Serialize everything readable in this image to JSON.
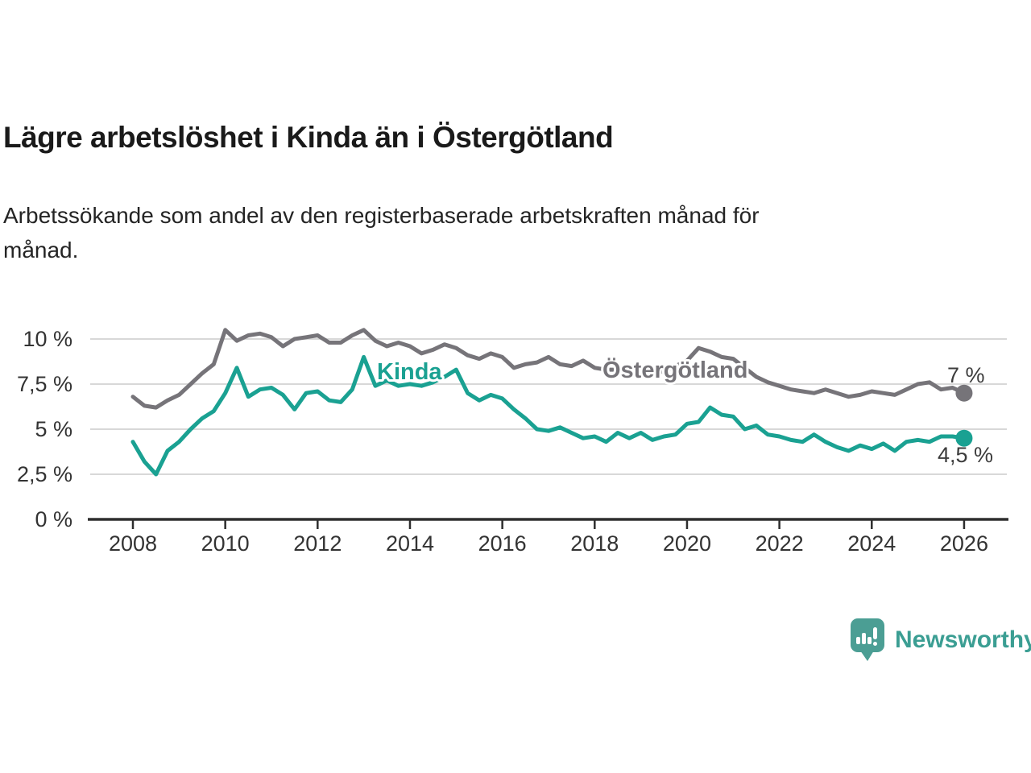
{
  "header": {
    "title": "Lägre arbetslöshet i Kinda än i Östergötland",
    "subtitle": "Arbetssökande som andel av den registerbaserade arbetskraften månad för månad."
  },
  "chart_data": {
    "type": "line",
    "title": "Lägre arbetslöshet i Kinda än i Östergötland",
    "xlabel": "",
    "ylabel": "",
    "grid": true,
    "legend": "inline-series-labels",
    "xlim": [
      2008,
      2026
    ],
    "ylim": [
      0,
      11.2
    ],
    "x_ticks": [
      2008,
      2010,
      2012,
      2014,
      2016,
      2018,
      2020,
      2022,
      2024,
      2026
    ],
    "x_tick_labels": [
      "2008",
      "2010",
      "2012",
      "2014",
      "2016",
      "2018",
      "2020",
      "2022",
      "2024",
      "2026"
    ],
    "y_ticks": [
      0,
      2.5,
      5,
      7.5,
      10
    ],
    "y_tick_labels": [
      "0 %",
      "2,5 %",
      "5 %",
      "7,5 %",
      "10 %"
    ],
    "x": [
      2008,
      2008.25,
      2008.5,
      2008.75,
      2009,
      2009.25,
      2009.5,
      2009.75,
      2010,
      2010.25,
      2010.5,
      2010.75,
      2011,
      2011.25,
      2011.5,
      2011.75,
      2012,
      2012.25,
      2012.5,
      2012.75,
      2013,
      2013.25,
      2013.5,
      2013.75,
      2014,
      2014.25,
      2014.5,
      2014.75,
      2015,
      2015.25,
      2015.5,
      2015.75,
      2016,
      2016.25,
      2016.5,
      2016.75,
      2017,
      2017.25,
      2017.5,
      2017.75,
      2018,
      2018.25,
      2018.5,
      2018.75,
      2019,
      2019.25,
      2019.5,
      2019.75,
      2020,
      2020.25,
      2020.5,
      2020.75,
      2021,
      2021.25,
      2021.5,
      2021.75,
      2022,
      2022.25,
      2022.5,
      2022.75,
      2023,
      2023.25,
      2023.5,
      2023.75,
      2024,
      2024.25,
      2024.5,
      2024.75,
      2025,
      2025.25,
      2025.5,
      2025.75,
      2026
    ],
    "series": [
      {
        "name": "Östergötland",
        "color": "#767479",
        "end_label": "7 %",
        "end_value": 7.0,
        "values": [
          6.8,
          6.3,
          6.2,
          6.6,
          6.9,
          7.5,
          8.1,
          8.6,
          10.5,
          9.9,
          10.2,
          10.3,
          10.1,
          9.6,
          10.0,
          10.1,
          10.2,
          9.8,
          9.8,
          10.2,
          10.5,
          9.9,
          9.6,
          9.8,
          9.6,
          9.2,
          9.4,
          9.7,
          9.5,
          9.1,
          8.9,
          9.2,
          9.0,
          8.4,
          8.6,
          8.7,
          9.0,
          8.6,
          8.5,
          8.8,
          8.4,
          8.3,
          8.3,
          8.4,
          8.2,
          8.1,
          8.2,
          8.5,
          8.8,
          9.5,
          9.3,
          9.0,
          8.9,
          8.4,
          7.9,
          7.6,
          7.4,
          7.2,
          7.1,
          7.0,
          7.2,
          7.0,
          6.8,
          6.9,
          7.1,
          7.0,
          6.9,
          7.2,
          7.5,
          7.6,
          7.2,
          7.3,
          7.0
        ]
      },
      {
        "name": "Kinda",
        "color": "#1aa192",
        "end_label": "4,5 %",
        "end_value": 4.5,
        "values": [
          4.3,
          3.2,
          2.5,
          3.8,
          4.3,
          5.0,
          5.6,
          6.0,
          7.0,
          8.4,
          6.8,
          7.2,
          7.3,
          6.9,
          6.1,
          7.0,
          7.1,
          6.6,
          6.5,
          7.2,
          9.0,
          7.4,
          7.7,
          7.4,
          7.5,
          7.4,
          7.6,
          7.9,
          8.3,
          7.0,
          6.6,
          6.9,
          6.7,
          6.1,
          5.6,
          5.0,
          4.9,
          5.1,
          4.8,
          4.5,
          4.6,
          4.3,
          4.8,
          4.5,
          4.8,
          4.4,
          4.6,
          4.7,
          5.3,
          5.4,
          6.2,
          5.8,
          5.7,
          5.0,
          5.2,
          4.7,
          4.6,
          4.4,
          4.3,
          4.7,
          4.3,
          4.0,
          3.8,
          4.1,
          3.9,
          4.2,
          3.8,
          4.3,
          4.4,
          4.3,
          4.6,
          4.6,
          4.5
        ]
      }
    ],
    "colors": {
      "grid": "#d8d8d8",
      "axis": "#2e2e2e",
      "tick_text": "#333333",
      "annotation_text": "#3c3c3c",
      "background": "#ffffff"
    }
  },
  "footer": {
    "brand": "Newsworthy",
    "logo_icon": "newsworthy-bubble-barchart-icon",
    "brand_color": "#3b9e93",
    "logo_color": "#4b9e94"
  }
}
